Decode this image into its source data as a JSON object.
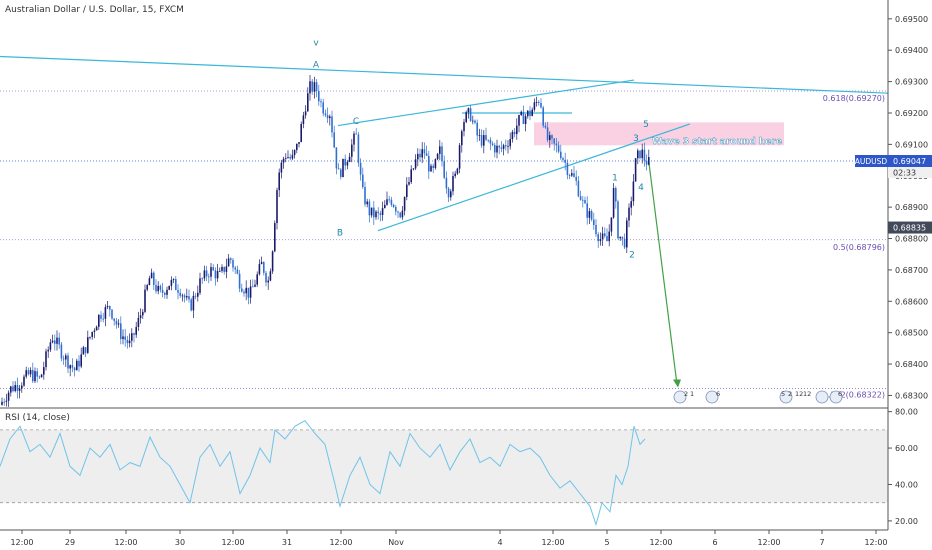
{
  "header": {
    "title": "Australian Dollar / U.S. Dollar, 15, FXCM"
  },
  "chart_data": {
    "type": "line",
    "symbol": "AUDUSD",
    "price_axis": {
      "ticks": [
        "0.69500",
        "0.69400",
        "0.69300",
        "0.69200",
        "0.69100",
        "0.69000",
        "0.68900",
        "0.68800",
        "0.68700",
        "0.68600",
        "0.68500",
        "0.68400",
        "0.68300"
      ],
      "range": [
        0.6826,
        0.6956
      ]
    },
    "price_labels": {
      "current_value": "0.69047",
      "current_symbol": "AUDUSD",
      "countdown": "02:33",
      "second_marker": "0.68835",
      "fib_618": "0.618(0.69270)",
      "fib_5": "0.5(0.68796)",
      "fib_382": ".382(0.68322)"
    },
    "time_axis": {
      "labels": [
        "12:00",
        "29",
        "12:00",
        "30",
        "12:00",
        "31",
        "12:00",
        "Nov",
        "4",
        "12:00",
        "5",
        "12:00",
        "6",
        "12:00",
        "7",
        "12:00"
      ]
    },
    "price_series": [
      [
        0,
        0.6827
      ],
      [
        10,
        0.6832
      ],
      [
        20,
        0.6834
      ],
      [
        30,
        0.6837
      ],
      [
        40,
        0.6835
      ],
      [
        52,
        0.6849
      ],
      [
        65,
        0.6842
      ],
      [
        75,
        0.6838
      ],
      [
        85,
        0.6845
      ],
      [
        100,
        0.6856
      ],
      [
        110,
        0.6858
      ],
      [
        120,
        0.685
      ],
      [
        130,
        0.6846
      ],
      [
        140,
        0.6855
      ],
      [
        150,
        0.6868
      ],
      [
        160,
        0.6862
      ],
      [
        170,
        0.6866
      ],
      [
        180,
        0.6864
      ],
      [
        190,
        0.6858
      ],
      [
        200,
        0.6866
      ],
      [
        210,
        0.687
      ],
      [
        220,
        0.6868
      ],
      [
        230,
        0.6874
      ],
      [
        240,
        0.6866
      ],
      [
        250,
        0.6862
      ],
      [
        262,
        0.6872
      ],
      [
        268,
        0.6866
      ],
      [
        272,
        0.6875
      ],
      [
        278,
        0.69
      ],
      [
        285,
        0.6907
      ],
      [
        292,
        0.6905
      ],
      [
        298,
        0.691
      ],
      [
        305,
        0.6922
      ],
      [
        310,
        0.6928
      ],
      [
        316,
        0.6928
      ],
      [
        322,
        0.6922
      ],
      [
        330,
        0.692
      ],
      [
        338,
        0.69
      ],
      [
        346,
        0.6905
      ],
      [
        356,
        0.6913
      ],
      [
        362,
        0.6895
      ],
      [
        370,
        0.6888
      ],
      [
        380,
        0.6887
      ],
      [
        390,
        0.6893
      ],
      [
        400,
        0.6888
      ],
      [
        408,
        0.6897
      ],
      [
        416,
        0.6905
      ],
      [
        424,
        0.6908
      ],
      [
        432,
        0.69
      ],
      [
        440,
        0.6908
      ],
      [
        448,
        0.6895
      ],
      [
        456,
        0.69
      ],
      [
        462,
        0.6917
      ],
      [
        470,
        0.692
      ],
      [
        478,
        0.6912
      ],
      [
        490,
        0.691
      ],
      [
        500,
        0.6908
      ],
      [
        510,
        0.6912
      ],
      [
        520,
        0.6918
      ],
      [
        530,
        0.692
      ],
      [
        540,
        0.6925
      ],
      [
        546,
        0.6912
      ],
      [
        552,
        0.691
      ],
      [
        560,
        0.6908
      ],
      [
        568,
        0.6902
      ],
      [
        576,
        0.6898
      ],
      [
        584,
        0.689
      ],
      [
        592,
        0.6886
      ],
      [
        600,
        0.688
      ],
      [
        608,
        0.6879
      ],
      [
        614,
        0.6896
      ],
      [
        618,
        0.6882
      ],
      [
        624,
        0.6878
      ],
      [
        630,
        0.689
      ],
      [
        636,
        0.6905
      ],
      [
        641,
        0.6908
      ],
      [
        645,
        0.6905
      ],
      [
        649,
        0.6904
      ]
    ],
    "rsi_panel": {
      "label": "RSI (14, close)",
      "ticks": [
        "80.00",
        "60.00",
        "40.00",
        "20.00"
      ],
      "range": [
        15,
        82
      ],
      "upper_band": 70,
      "lower_band": 30,
      "series": [
        [
          0,
          50
        ],
        [
          10,
          65
        ],
        [
          20,
          72
        ],
        [
          30,
          58
        ],
        [
          40,
          62
        ],
        [
          50,
          55
        ],
        [
          60,
          68
        ],
        [
          70,
          50
        ],
        [
          80,
          45
        ],
        [
          90,
          60
        ],
        [
          100,
          55
        ],
        [
          110,
          62
        ],
        [
          120,
          48
        ],
        [
          130,
          52
        ],
        [
          140,
          50
        ],
        [
          150,
          66
        ],
        [
          160,
          55
        ],
        [
          170,
          50
        ],
        [
          180,
          40
        ],
        [
          190,
          30
        ],
        [
          200,
          55
        ],
        [
          210,
          62
        ],
        [
          220,
          50
        ],
        [
          230,
          58
        ],
        [
          240,
          35
        ],
        [
          250,
          45
        ],
        [
          260,
          60
        ],
        [
          270,
          52
        ],
        [
          275,
          70
        ],
        [
          285,
          65
        ],
        [
          295,
          72
        ],
        [
          305,
          75
        ],
        [
          315,
          68
        ],
        [
          325,
          62
        ],
        [
          335,
          40
        ],
        [
          340,
          28
        ],
        [
          350,
          45
        ],
        [
          360,
          55
        ],
        [
          370,
          40
        ],
        [
          380,
          35
        ],
        [
          390,
          58
        ],
        [
          400,
          50
        ],
        [
          410,
          68
        ],
        [
          420,
          60
        ],
        [
          430,
          55
        ],
        [
          440,
          62
        ],
        [
          450,
          48
        ],
        [
          460,
          58
        ],
        [
          470,
          65
        ],
        [
          480,
          52
        ],
        [
          490,
          55
        ],
        [
          500,
          50
        ],
        [
          510,
          62
        ],
        [
          520,
          58
        ],
        [
          530,
          60
        ],
        [
          540,
          55
        ],
        [
          550,
          45
        ],
        [
          560,
          38
        ],
        [
          570,
          42
        ],
        [
          580,
          35
        ],
        [
          590,
          28
        ],
        [
          596,
          18
        ],
        [
          602,
          30
        ],
        [
          610,
          25
        ],
        [
          616,
          45
        ],
        [
          622,
          40
        ],
        [
          628,
          50
        ],
        [
          634,
          72
        ],
        [
          640,
          62
        ],
        [
          645,
          65
        ]
      ]
    },
    "wave_labels": [
      {
        "text": "v",
        "x": 316,
        "price": 0.69415
      },
      {
        "text": "A",
        "x": 316,
        "price": 0.69345
      },
      {
        "text": "B",
        "x": 340,
        "price": 0.6881
      },
      {
        "text": "C",
        "x": 356,
        "price": 0.69165
      },
      {
        "text": "1",
        "x": 615,
        "price": 0.68985
      },
      {
        "text": "2",
        "x": 632,
        "price": 0.6874
      },
      {
        "text": "3",
        "x": 636,
        "price": 0.6911
      },
      {
        "text": "4",
        "x": 641,
        "price": 0.68955
      },
      {
        "text": "5",
        "x": 646,
        "price": 0.69155
      }
    ],
    "annotation": "Wave 3 start around here",
    "event_badges": [
      "2",
      "1",
      "6",
      "5",
      "2",
      "12",
      "12",
      "6"
    ],
    "colors": {
      "up_candle": "#1b1b6b",
      "down_candle": "#2f6fd1",
      "trendline": "#3ab7d9",
      "target_arrow": "#43a047",
      "rsi_line": "#6fc3ea",
      "rsi_band_fill": "#eeeeee",
      "highlight_box": "#f8c9dd",
      "current_price_bg": "#2d57c8",
      "fib_text": "#6a4fb3"
    }
  }
}
